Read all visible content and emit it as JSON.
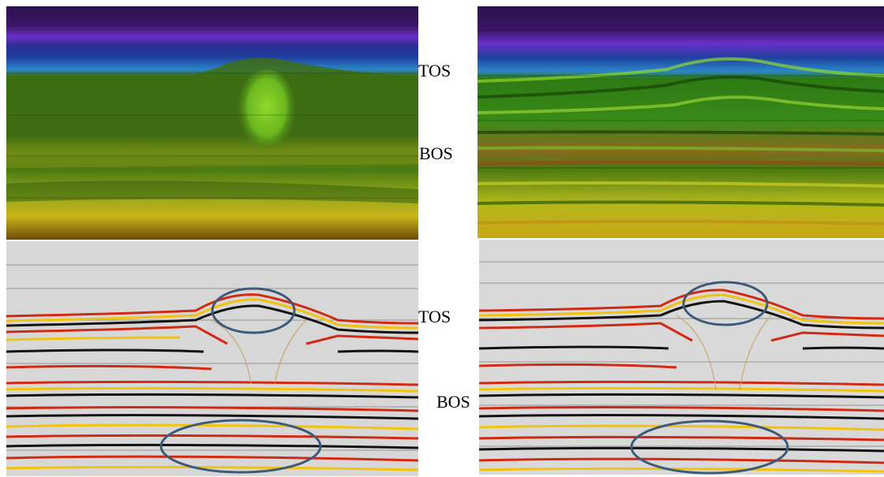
{
  "labels": {
    "top_tos": "TOS",
    "top_bos": "BOS",
    "bottom_tos": "TOS",
    "bottom_bos": "BOS"
  },
  "colors": {
    "velocity_purple": "#3a1566",
    "velocity_violet": "#6a2fc8",
    "velocity_blue": "#2a86c9",
    "velocity_green": "#3d6e13",
    "velocity_yellow": "#c9b51a",
    "seismic_red": "#d22a12",
    "seismic_black": "#111111",
    "seismic_yellow": "#f1c30d",
    "ellipse_stroke": "#3d5a7a"
  }
}
